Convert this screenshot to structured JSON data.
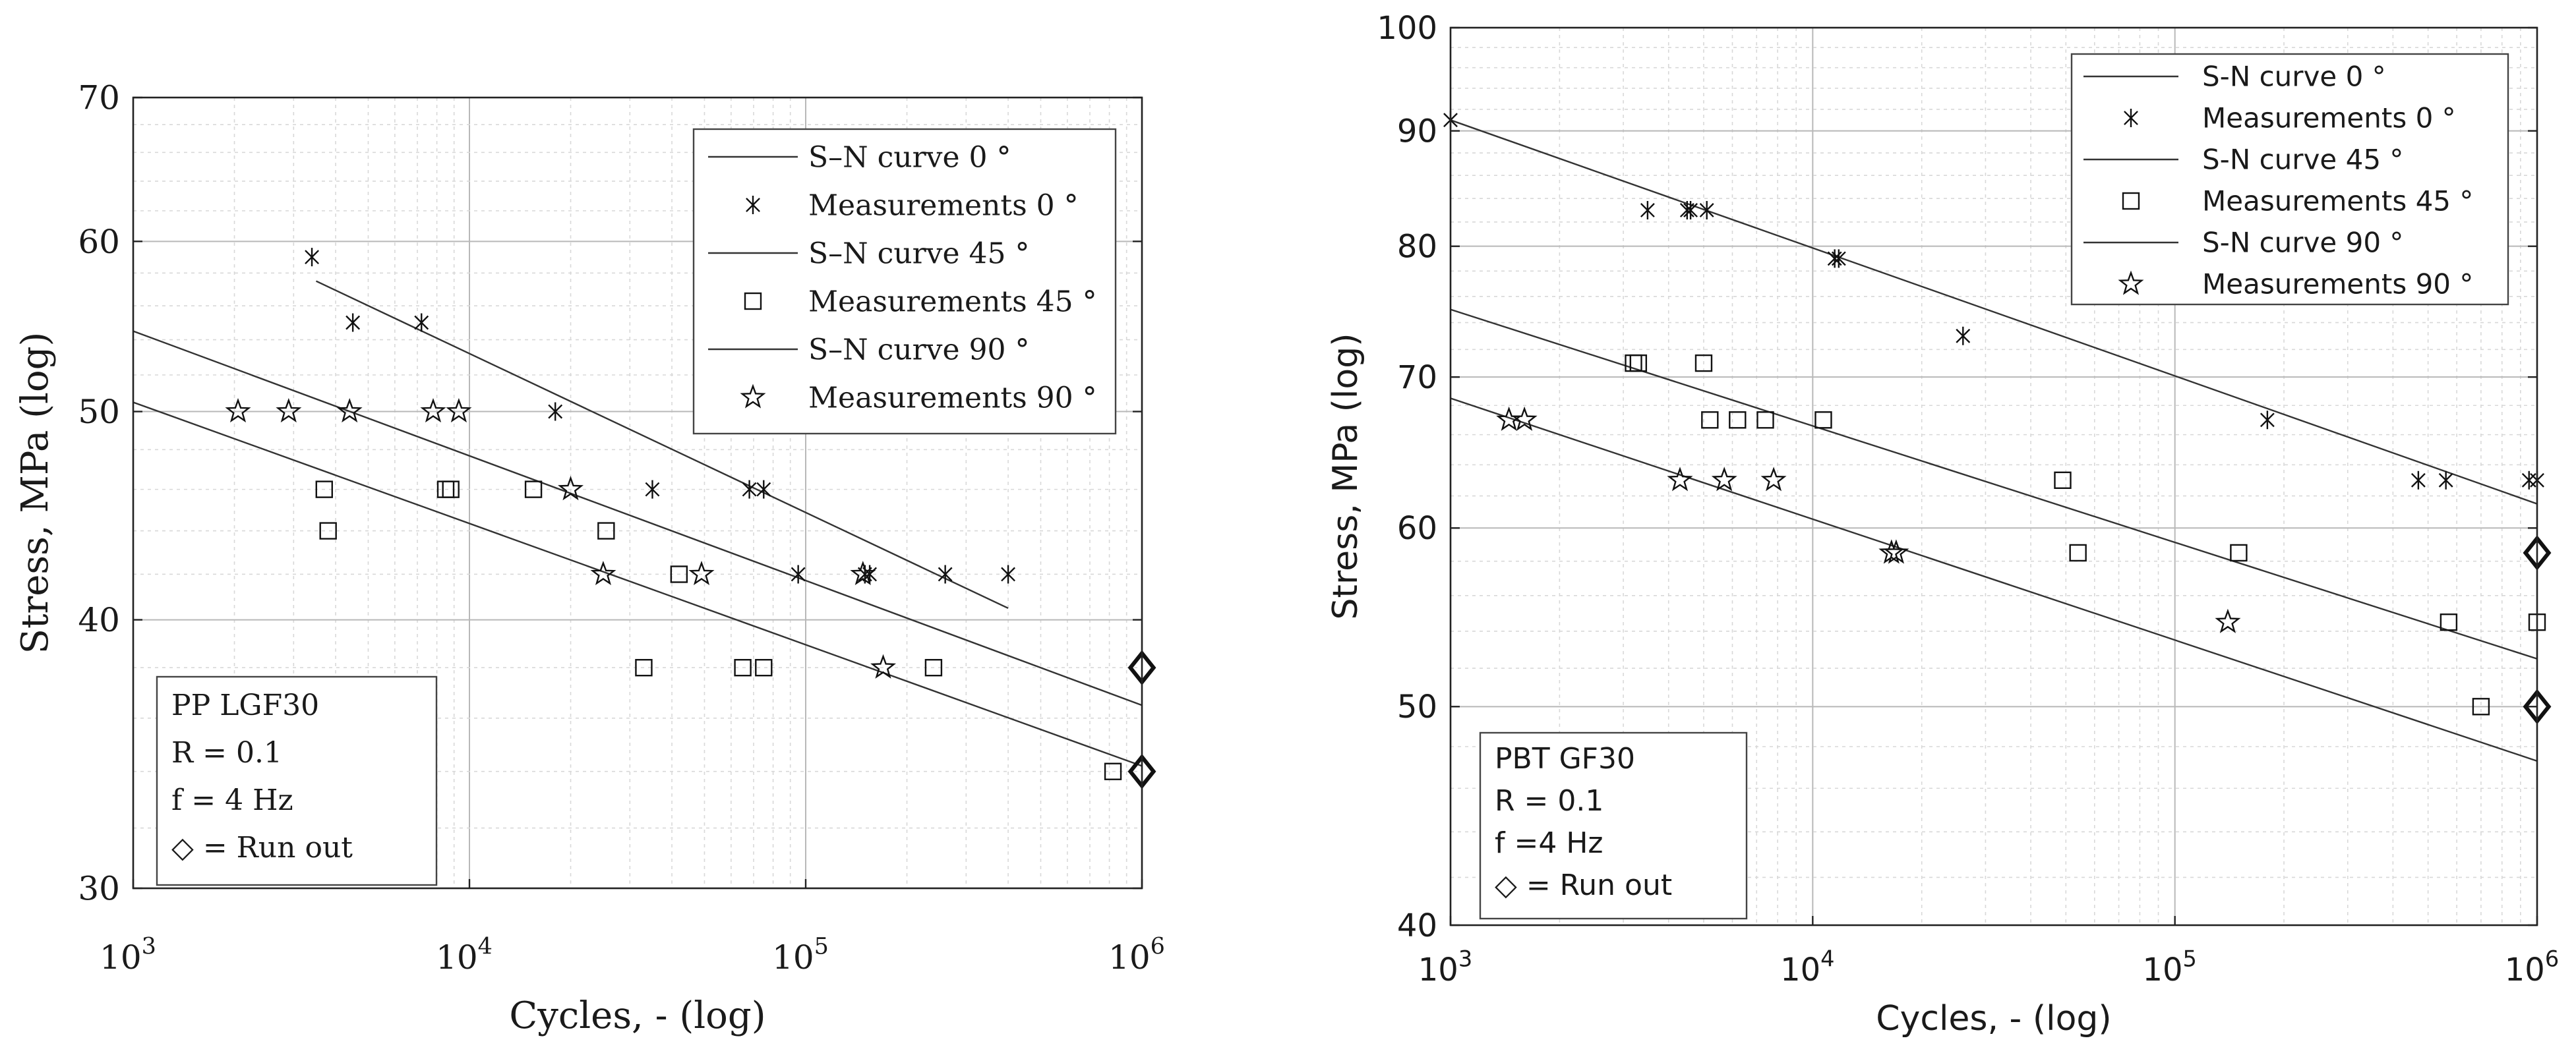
{
  "chart_data": [
    {
      "type": "scatter",
      "scale": "log-log",
      "xlabel": "Cycles, - (log)",
      "ylabel": "Stress, MPa (log)",
      "xlim": [
        1000,
        1000000
      ],
      "ylim": [
        30,
        70
      ],
      "yticks": [
        30,
        40,
        50,
        60,
        70
      ],
      "ytick_labels": [
        "30",
        "40",
        "50",
        "60",
        "70"
      ],
      "xtick_labels": [
        {
          "base": "10",
          "exp": "3"
        },
        {
          "base": "10",
          "exp": "4"
        },
        {
          "base": "10",
          "exp": "5"
        },
        {
          "base": "10",
          "exp": "6"
        }
      ],
      "grid": true,
      "legend_position": "top-right",
      "legend": [
        {
          "label": "S–N curve 0 °",
          "symbol": "line"
        },
        {
          "label": "Measurements  0 °",
          "symbol": "asterisk"
        },
        {
          "label": "S–N curve 45 °",
          "symbol": "line"
        },
        {
          "label": "Measurements  45 °",
          "symbol": "square"
        },
        {
          "label": "S–N curve 90 °",
          "symbol": "line"
        },
        {
          "label": "Measurements  90 °",
          "symbol": "star"
        }
      ],
      "info_box": [
        "PP LGF30",
        "R = 0.1",
        "f = 4 Hz",
        "◇ = Run out"
      ],
      "series": [
        {
          "name": "S–N curve 0 °",
          "kind": "line",
          "x": [
            3500,
            400000
          ],
          "y": [
            57.5,
            40.5
          ]
        },
        {
          "name": "Measurements 0 °",
          "kind": "asterisk",
          "x": [
            3400,
            4500,
            7200,
            18000,
            35000,
            68000,
            75000,
            95000,
            150000,
            155000,
            260000,
            400000
          ],
          "y": [
            59,
            55,
            55,
            50,
            46,
            46,
            46,
            42,
            42,
            42,
            42,
            42
          ]
        },
        {
          "name": "S–N curve 45 °",
          "kind": "line",
          "x": [
            1000,
            1000000
          ],
          "y": [
            54.5,
            36.5
          ]
        },
        {
          "name": "Measurements 45 °",
          "kind": "square",
          "x": [
            3700,
            3800,
            8500,
            8800,
            15500,
            25500,
            42000,
            33000,
            65000,
            75000,
            240000,
            820000
          ],
          "y": [
            46,
            44,
            46,
            46,
            46,
            44,
            42,
            38,
            38,
            38,
            38,
            34
          ]
        },
        {
          "name": "S–N curve 90 °",
          "kind": "line",
          "x": [
            1000,
            1000000
          ],
          "y": [
            50.5,
            34.2
          ]
        },
        {
          "name": "Measurements 90 °",
          "kind": "star",
          "x": [
            2050,
            2900,
            4400,
            7800,
            9300,
            20000,
            25000,
            49000,
            148000,
            170000
          ],
          "y": [
            50,
            50,
            50,
            50,
            50,
            46,
            42,
            42,
            42,
            38
          ]
        },
        {
          "name": "Run out",
          "kind": "diamond",
          "x": [
            1000000,
            1000000
          ],
          "y": [
            38,
            34
          ]
        }
      ]
    },
    {
      "type": "scatter",
      "scale": "log-log",
      "xlabel": "Cycles, - (log)",
      "ylabel": "Stress, MPa (log)",
      "xlim": [
        1000,
        1000000
      ],
      "ylim": [
        40,
        100
      ],
      "yticks": [
        40,
        50,
        60,
        70,
        80,
        90,
        100
      ],
      "ytick_labels": [
        "40",
        "50",
        "60",
        "70",
        "80",
        "90",
        "100"
      ],
      "xtick_labels": [
        {
          "base": "10",
          "exp": "3"
        },
        {
          "base": "10",
          "exp": "4"
        },
        {
          "base": "10",
          "exp": "5"
        },
        {
          "base": "10",
          "exp": "6"
        }
      ],
      "grid": true,
      "legend_position": "top-right",
      "legend": [
        {
          "label": "S-N curve  0 °",
          "symbol": "line"
        },
        {
          "label": "Measurements  0 °",
          "symbol": "asterisk"
        },
        {
          "label": "S-N curve  45 °",
          "symbol": "line"
        },
        {
          "label": "Measurements  45 °",
          "symbol": "square"
        },
        {
          "label": "S-N curve  90 °",
          "symbol": "line"
        },
        {
          "label": "Measurements  90 °",
          "symbol": "star"
        }
      ],
      "info_box": [
        "PBT GF30",
        "R = 0.1",
        "f =4 Hz",
        "◇ = Run out"
      ],
      "series": [
        {
          "name": "S-N curve 0 °",
          "kind": "line",
          "x": [
            1000,
            1000000
          ],
          "y": [
            91,
            61.5
          ]
        },
        {
          "name": "Measurements 0 °",
          "kind": "asterisk",
          "x": [
            1000,
            3500,
            4500,
            4600,
            5100,
            11500,
            11800,
            26000,
            180000,
            470000,
            560000,
            950000,
            1000000
          ],
          "y": [
            91,
            83,
            83,
            83,
            83,
            79,
            79,
            73,
            67,
            63,
            63,
            63,
            63
          ]
        },
        {
          "name": "S-N curve 45 °",
          "kind": "line",
          "x": [
            1000,
            1000000
          ],
          "y": [
            75,
            52.5
          ]
        },
        {
          "name": "Measurements 45 °",
          "kind": "square",
          "x": [
            3200,
            3300,
            5000,
            5200,
            6200,
            7400,
            10700,
            49000,
            54000,
            150000,
            570000,
            700000,
            1000000
          ],
          "y": [
            71,
            71,
            71,
            67,
            67,
            67,
            67,
            63,
            58.5,
            58.5,
            54.5,
            50,
            54.5
          ]
        },
        {
          "name": "S-N curve 90 °",
          "kind": "line",
          "x": [
            1000,
            1000000
          ],
          "y": [
            68.5,
            47.3
          ]
        },
        {
          "name": "Measurements 90 °",
          "kind": "star",
          "x": [
            1450,
            1600,
            4300,
            5700,
            7800,
            16500,
            17000,
            140000
          ],
          "y": [
            67,
            67,
            63,
            63,
            63,
            58.5,
            58.5,
            54.5
          ]
        },
        {
          "name": "Run out",
          "kind": "diamond",
          "x": [
            1000000,
            1000000
          ],
          "y": [
            58.5,
            50
          ]
        }
      ]
    }
  ]
}
